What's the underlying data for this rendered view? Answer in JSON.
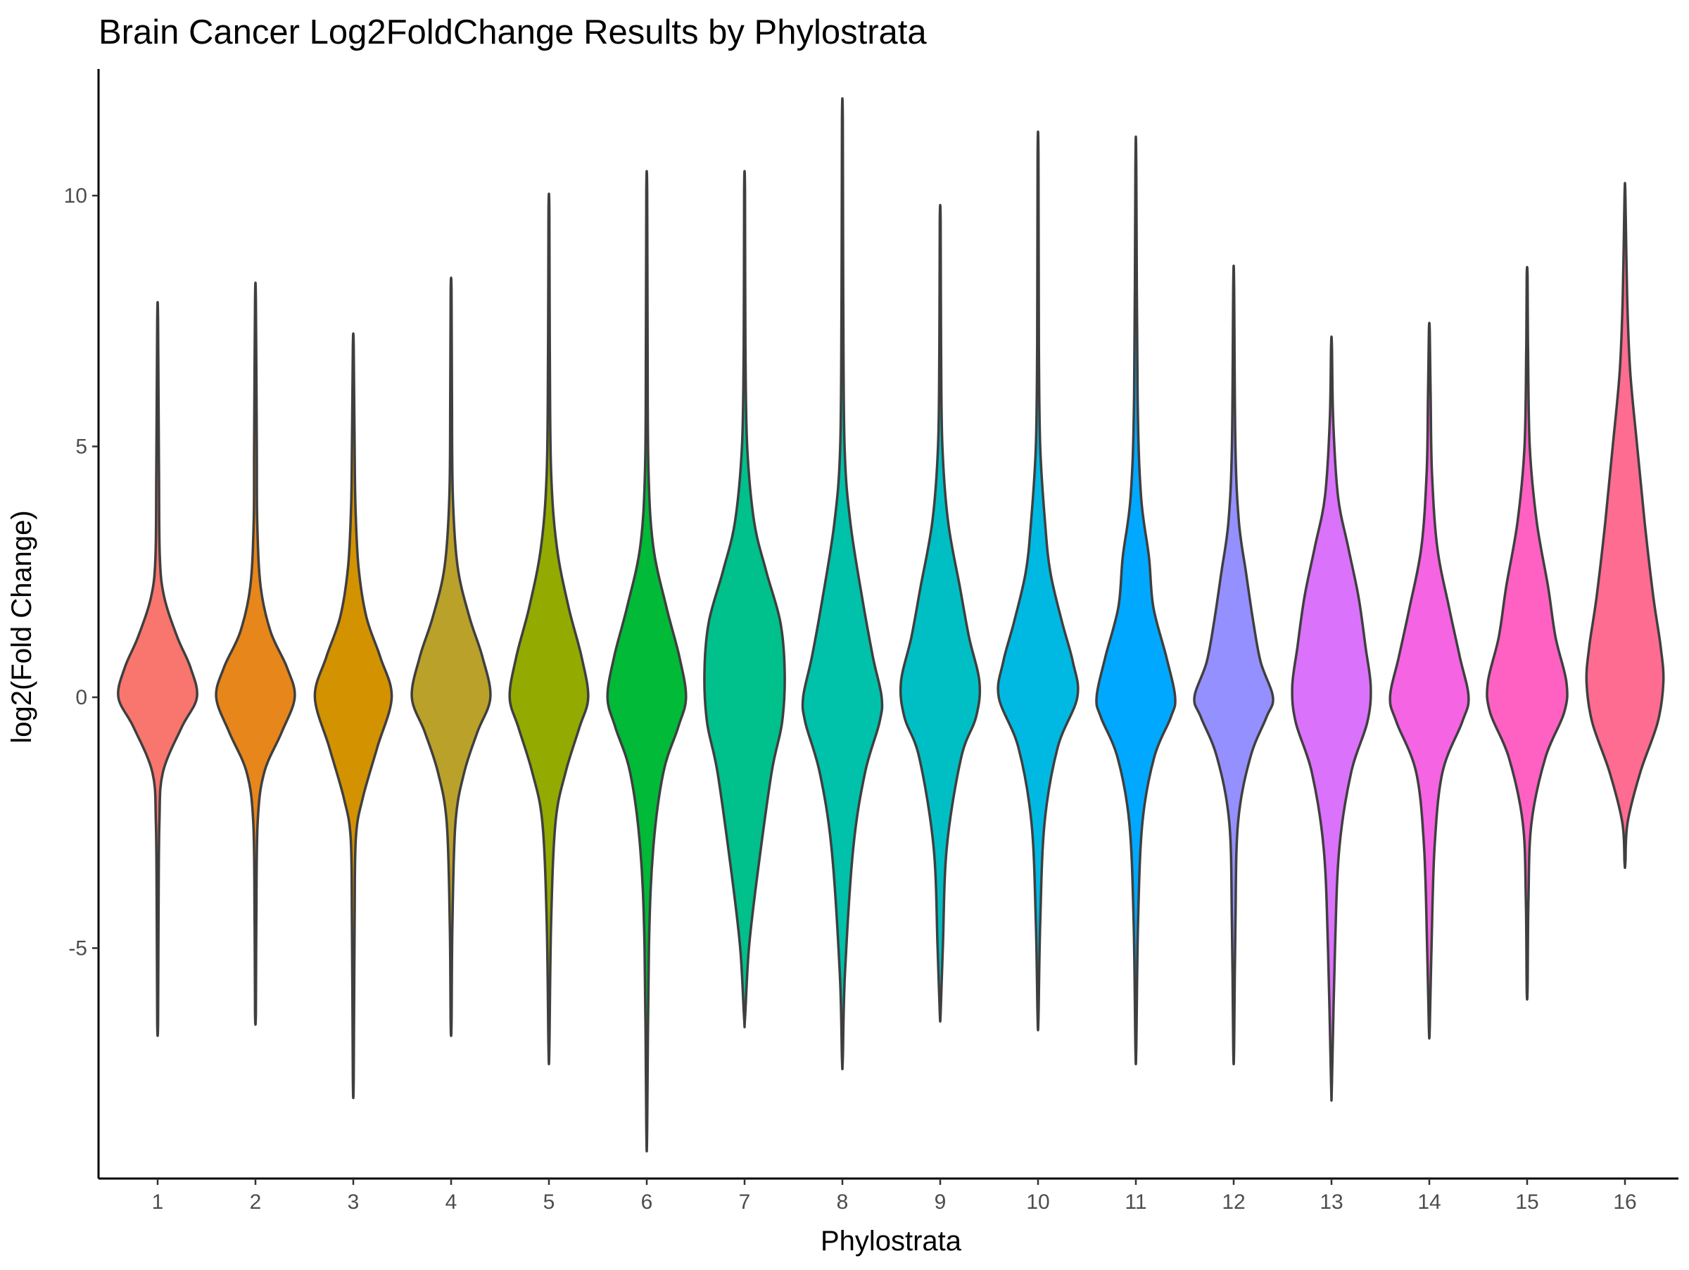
{
  "chart_data": {
    "type": "violin",
    "title": "Brain Cancer Log2FoldChange Results by Phylostrata",
    "xlabel": "Phylostrata",
    "ylabel": "log2(Fold Change)",
    "categories": [
      "1",
      "2",
      "3",
      "4",
      "5",
      "6",
      "7",
      "8",
      "9",
      "10",
      "11",
      "12",
      "13",
      "14",
      "15",
      "16"
    ],
    "ylim": [
      -9.5,
      12.5
    ],
    "yticks": [
      -5,
      0,
      5,
      10
    ],
    "ytick_labels": [
      "-5",
      "0",
      "5",
      "10"
    ],
    "grid": false,
    "legend": "none",
    "colors": [
      "#F8766D",
      "#E7861A",
      "#D39200",
      "#BAA12A",
      "#93AA00",
      "#00BA38",
      "#00C08B",
      "#00C1AA",
      "#00BFC4",
      "#00B9E3",
      "#00A9FF",
      "#9590FF",
      "#DB72FB",
      "#F564E3",
      "#FF61C3",
      "#FF6C91"
    ],
    "series": [
      {
        "name": "1",
        "min": -6.5,
        "max": 7.5,
        "profile": [
          [
            -6.5,
            0.01
          ],
          [
            -4.5,
            0.02
          ],
          [
            -2.5,
            0.04
          ],
          [
            -1.5,
            0.12
          ],
          [
            -0.6,
            0.55
          ],
          [
            0,
            0.9
          ],
          [
            0.6,
            0.75
          ],
          [
            1.2,
            0.45
          ],
          [
            2,
            0.15
          ],
          [
            2.8,
            0.05
          ],
          [
            4.5,
            0.03
          ],
          [
            7.5,
            0.01
          ]
        ]
      },
      {
        "name": "2",
        "min": -6.3,
        "max": 7.9,
        "profile": [
          [
            -6.3,
            0.01
          ],
          [
            -4.5,
            0.02
          ],
          [
            -2.5,
            0.05
          ],
          [
            -1.5,
            0.2
          ],
          [
            -0.7,
            0.6
          ],
          [
            0,
            0.9
          ],
          [
            0.6,
            0.72
          ],
          [
            1.3,
            0.35
          ],
          [
            2.2,
            0.12
          ],
          [
            3.5,
            0.04
          ],
          [
            5,
            0.03
          ],
          [
            7.9,
            0.01
          ]
        ]
      },
      {
        "name": "3",
        "min": -7.6,
        "max": 7.0,
        "profile": [
          [
            -7.6,
            0.01
          ],
          [
            -4.5,
            0.03
          ],
          [
            -2.8,
            0.06
          ],
          [
            -2,
            0.22
          ],
          [
            -1,
            0.55
          ],
          [
            0,
            0.88
          ],
          [
            0.8,
            0.62
          ],
          [
            1.6,
            0.3
          ],
          [
            2.6,
            0.12
          ],
          [
            3.8,
            0.05
          ],
          [
            5,
            0.03
          ],
          [
            7,
            0.01
          ]
        ]
      },
      {
        "name": "4",
        "min": -6.5,
        "max": 8.1,
        "profile": [
          [
            -6.5,
            0.01
          ],
          [
            -4.5,
            0.03
          ],
          [
            -2.5,
            0.1
          ],
          [
            -1.5,
            0.3
          ],
          [
            -0.7,
            0.6
          ],
          [
            0,
            0.9
          ],
          [
            0.8,
            0.72
          ],
          [
            1.6,
            0.42
          ],
          [
            2.6,
            0.15
          ],
          [
            4,
            0.04
          ],
          [
            6,
            0.02
          ],
          [
            8.1,
            0.01
          ]
        ]
      },
      {
        "name": "5",
        "min": -7.0,
        "max": 9.7,
        "profile": [
          [
            -7,
            0.01
          ],
          [
            -4.5,
            0.05
          ],
          [
            -2.5,
            0.15
          ],
          [
            -1.5,
            0.38
          ],
          [
            -0.6,
            0.7
          ],
          [
            0,
            0.9
          ],
          [
            0.8,
            0.75
          ],
          [
            1.8,
            0.45
          ],
          [
            3,
            0.18
          ],
          [
            4.5,
            0.05
          ],
          [
            7,
            0.02
          ],
          [
            9.7,
            0.01
          ]
        ]
      },
      {
        "name": "6",
        "min": -8.6,
        "max": 10.1,
        "profile": [
          [
            -8.6,
            0.01
          ],
          [
            -5,
            0.05
          ],
          [
            -3,
            0.15
          ],
          [
            -1.5,
            0.38
          ],
          [
            -0.6,
            0.72
          ],
          [
            0,
            0.9
          ],
          [
            0.8,
            0.75
          ],
          [
            1.8,
            0.45
          ],
          [
            3,
            0.15
          ],
          [
            4.5,
            0.04
          ],
          [
            7,
            0.02
          ],
          [
            10.1,
            0.01
          ]
        ]
      },
      {
        "name": "7",
        "min": -6.4,
        "max": 10.1,
        "profile": [
          [
            -6.4,
            0.01
          ],
          [
            -5,
            0.1
          ],
          [
            -3.5,
            0.3
          ],
          [
            -1.5,
            0.62
          ],
          [
            -0.5,
            0.86
          ],
          [
            0.5,
            0.92
          ],
          [
            1.5,
            0.82
          ],
          [
            2.5,
            0.5
          ],
          [
            3.5,
            0.22
          ],
          [
            5,
            0.06
          ],
          [
            7,
            0.02
          ],
          [
            10.1,
            0.01
          ]
        ]
      },
      {
        "name": "8",
        "min": -7.2,
        "max": 11.5,
        "profile": [
          [
            -7.2,
            0.01
          ],
          [
            -5.5,
            0.06
          ],
          [
            -3,
            0.25
          ],
          [
            -1.5,
            0.52
          ],
          [
            -0.5,
            0.85
          ],
          [
            0,
            0.9
          ],
          [
            0.8,
            0.7
          ],
          [
            2,
            0.45
          ],
          [
            3.5,
            0.18
          ],
          [
            5,
            0.05
          ],
          [
            8,
            0.02
          ],
          [
            11.5,
            0.01
          ]
        ]
      },
      {
        "name": "9",
        "min": -6.3,
        "max": 9.5,
        "profile": [
          [
            -6.3,
            0.01
          ],
          [
            -5,
            0.06
          ],
          [
            -3,
            0.15
          ],
          [
            -1.2,
            0.48
          ],
          [
            -0.4,
            0.82
          ],
          [
            0.3,
            0.9
          ],
          [
            1.2,
            0.66
          ],
          [
            2.2,
            0.45
          ],
          [
            3.5,
            0.18
          ],
          [
            5,
            0.05
          ],
          [
            7,
            0.02
          ],
          [
            9.5,
            0.01
          ]
        ]
      },
      {
        "name": "10",
        "min": -6.4,
        "max": 10.8,
        "profile": [
          [
            -6.4,
            0.01
          ],
          [
            -4.5,
            0.05
          ],
          [
            -2.5,
            0.15
          ],
          [
            -1,
            0.45
          ],
          [
            0,
            0.9
          ],
          [
            0.7,
            0.8
          ],
          [
            1.5,
            0.55
          ],
          [
            2.5,
            0.28
          ],
          [
            3.5,
            0.16
          ],
          [
            5,
            0.05
          ],
          [
            7,
            0.02
          ],
          [
            10.8,
            0.01
          ]
        ]
      },
      {
        "name": "11",
        "min": -7.0,
        "max": 10.6,
        "profile": [
          [
            -7,
            0.01
          ],
          [
            -4.5,
            0.05
          ],
          [
            -2.5,
            0.15
          ],
          [
            -1.2,
            0.42
          ],
          [
            -0.4,
            0.8
          ],
          [
            0,
            0.9
          ],
          [
            0.8,
            0.7
          ],
          [
            1.8,
            0.4
          ],
          [
            2.8,
            0.3
          ],
          [
            4,
            0.12
          ],
          [
            6,
            0.04
          ],
          [
            10.6,
            0.01
          ]
        ]
      },
      {
        "name": "12",
        "min": -7.0,
        "max": 8.2,
        "profile": [
          [
            -7,
            0.01
          ],
          [
            -4.5,
            0.04
          ],
          [
            -2.5,
            0.1
          ],
          [
            -1.2,
            0.38
          ],
          [
            -0.4,
            0.75
          ],
          [
            0,
            0.9
          ],
          [
            0.7,
            0.62
          ],
          [
            1.5,
            0.45
          ],
          [
            2.5,
            0.28
          ],
          [
            3.5,
            0.12
          ],
          [
            5,
            0.04
          ],
          [
            8.2,
            0.01
          ]
        ]
      },
      {
        "name": "13",
        "min": -7.7,
        "max": 7.0,
        "profile": [
          [
            -7.7,
            0.01
          ],
          [
            -5,
            0.08
          ],
          [
            -3,
            0.18
          ],
          [
            -1.5,
            0.45
          ],
          [
            -0.5,
            0.82
          ],
          [
            0.2,
            0.9
          ],
          [
            1,
            0.78
          ],
          [
            2,
            0.62
          ],
          [
            3,
            0.38
          ],
          [
            4,
            0.15
          ],
          [
            5.5,
            0.04
          ],
          [
            7,
            0.01
          ]
        ]
      },
      {
        "name": "14",
        "min": -6.6,
        "max": 7.3,
        "profile": [
          [
            -6.6,
            0.01
          ],
          [
            -5,
            0.05
          ],
          [
            -3,
            0.12
          ],
          [
            -1.5,
            0.3
          ],
          [
            -0.5,
            0.75
          ],
          [
            0,
            0.9
          ],
          [
            0.8,
            0.7
          ],
          [
            1.8,
            0.45
          ],
          [
            3,
            0.18
          ],
          [
            4.5,
            0.06
          ],
          [
            6,
            0.03
          ],
          [
            7.3,
            0.01
          ]
        ]
      },
      {
        "name": "15",
        "min": -5.8,
        "max": 8.4,
        "profile": [
          [
            -5.8,
            0.01
          ],
          [
            -4,
            0.03
          ],
          [
            -2.5,
            0.1
          ],
          [
            -1.2,
            0.42
          ],
          [
            -0.3,
            0.85
          ],
          [
            0.3,
            0.9
          ],
          [
            1.2,
            0.65
          ],
          [
            2.2,
            0.48
          ],
          [
            3.5,
            0.22
          ],
          [
            5,
            0.06
          ],
          [
            7,
            0.02
          ],
          [
            8.4,
            0.01
          ]
        ]
      },
      {
        "name": "16",
        "min": -3.3,
        "max": 10.0,
        "profile": [
          [
            -3.3,
            0.01
          ],
          [
            -2.5,
            0.06
          ],
          [
            -1.5,
            0.35
          ],
          [
            -0.5,
            0.75
          ],
          [
            0.3,
            0.88
          ],
          [
            1,
            0.82
          ],
          [
            2,
            0.65
          ],
          [
            3.5,
            0.45
          ],
          [
            5,
            0.28
          ],
          [
            6.5,
            0.12
          ],
          [
            8,
            0.05
          ],
          [
            10,
            0.01
          ]
        ]
      }
    ]
  }
}
